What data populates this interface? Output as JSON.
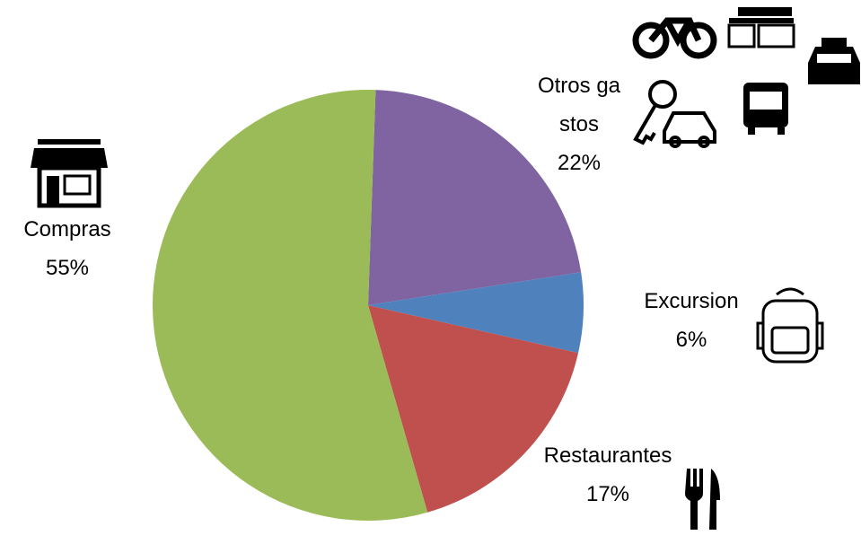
{
  "chart_data": {
    "type": "pie",
    "categories": [
      "Otros gastos",
      "Excursion",
      "Restaurantes",
      "Compras"
    ],
    "values": [
      22,
      6,
      17,
      55
    ],
    "value_labels": [
      "22%",
      "6%",
      "17%",
      "55%"
    ],
    "colors": [
      "#8064a2",
      "#4f81bd",
      "#c0504d",
      "#9bbb59"
    ]
  }
}
